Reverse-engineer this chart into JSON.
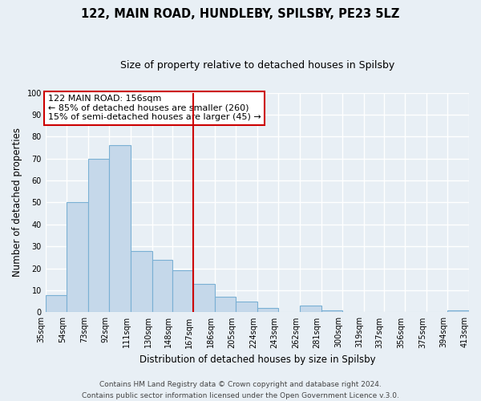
{
  "title": "122, MAIN ROAD, HUNDLEBY, SPILSBY, PE23 5LZ",
  "subtitle": "Size of property relative to detached houses in Spilsby",
  "xlabel": "Distribution of detached houses by size in Spilsby",
  "ylabel": "Number of detached properties",
  "footer_line1": "Contains HM Land Registry data © Crown copyright and database right 2024.",
  "footer_line2": "Contains public sector information licensed under the Open Government Licence v.3.0.",
  "bin_labels": [
    "35sqm",
    "54sqm",
    "73sqm",
    "92sqm",
    "111sqm",
    "130sqm",
    "148sqm",
    "167sqm",
    "186sqm",
    "205sqm",
    "224sqm",
    "243sqm",
    "262sqm",
    "281sqm",
    "300sqm",
    "319sqm",
    "337sqm",
    "356sqm",
    "375sqm",
    "394sqm",
    "413sqm"
  ],
  "bar_values": [
    8,
    50,
    70,
    76,
    28,
    24,
    19,
    13,
    7,
    5,
    2,
    0,
    3,
    1,
    0,
    0,
    0,
    0,
    0,
    1
  ],
  "bar_color": "#c5d8ea",
  "bar_edge_color": "#7ab0d4",
  "vline_x_index": 6,
  "vline_color": "#cc0000",
  "annotation_text": "122 MAIN ROAD: 156sqm\n← 85% of detached houses are smaller (260)\n15% of semi-detached houses are larger (45) →",
  "annotation_box_color": "#ffffff",
  "annotation_box_edge_color": "#cc0000",
  "ylim": [
    0,
    100
  ],
  "yticks": [
    0,
    10,
    20,
    30,
    40,
    50,
    60,
    70,
    80,
    90,
    100
  ],
  "background_color": "#e8eff5",
  "grid_color": "#ffffff",
  "title_fontsize": 10.5,
  "subtitle_fontsize": 9,
  "axis_label_fontsize": 8.5,
  "tick_fontsize": 7,
  "annotation_fontsize": 8,
  "footer_fontsize": 6.5
}
